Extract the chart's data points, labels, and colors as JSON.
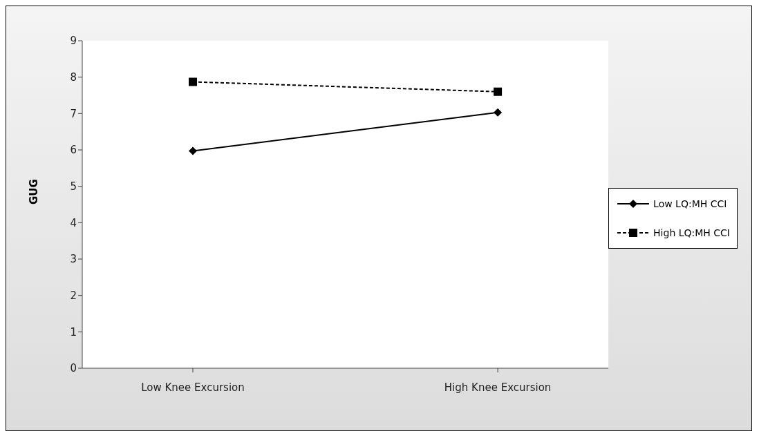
{
  "chart_data": {
    "type": "line",
    "ylabel": "GUG",
    "categories": [
      "Low Knee Excursion",
      "High Knee Excursion"
    ],
    "series": [
      {
        "name": "Low LQ:MH CCI",
        "color": "#000000",
        "values": [
          5.97,
          7.03
        ],
        "marker": "diamond",
        "line_style": "solid"
      },
      {
        "name": "High LQ:MH CCI",
        "color": "#000000",
        "values": [
          7.87,
          7.6
        ],
        "marker": "square",
        "line_style": "dashed"
      }
    ],
    "ylim": [
      0,
      9
    ],
    "yticks": [
      0,
      1,
      2,
      3,
      4,
      5,
      6,
      7,
      8,
      9
    ],
    "legend": "right"
  }
}
